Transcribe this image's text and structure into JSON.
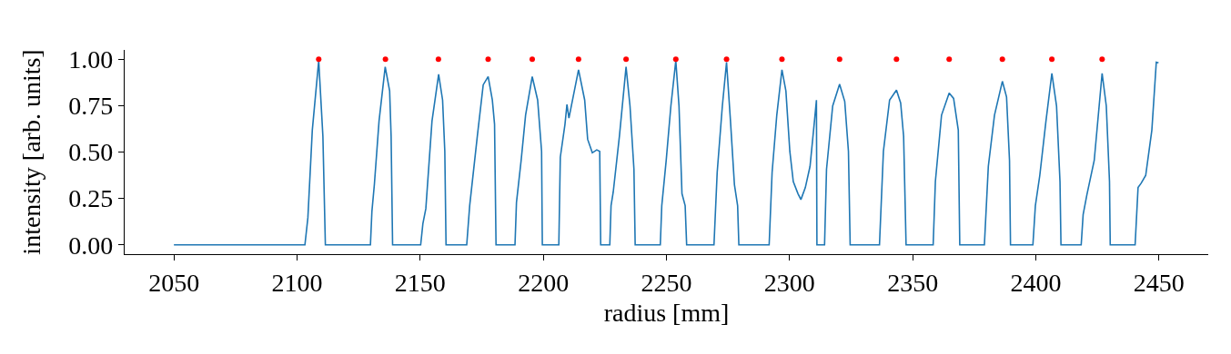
{
  "chart_data": {
    "type": "line",
    "xlabel": "radius [mm]",
    "ylabel": "intensity [arb. units]",
    "xlim": [
      2030,
      2470
    ],
    "ylim": [
      -0.05,
      1.05
    ],
    "xticks": [
      2050,
      2100,
      2150,
      2200,
      2250,
      2300,
      2350,
      2400,
      2450
    ],
    "yticks": [
      {
        "value": 0,
        "label": "0.00"
      },
      {
        "value": 0.25,
        "label": "0.25"
      },
      {
        "value": 0.5,
        "label": "0.50"
      },
      {
        "value": 0.75,
        "label": "0.75"
      },
      {
        "value": 1,
        "label": "1.00"
      }
    ],
    "series": [
      {
        "color": "#1f77b4",
        "marker": "none",
        "line_style": "solid",
        "x": [
          2050,
          2103.2,
          2104.4,
          2106.2,
          2108.8,
          2110.5,
          2111.5,
          2129.8,
          2130.4,
          2131.4,
          2133.3,
          2135.8,
          2137.6,
          2138.2,
          2138.8,
          2150.2,
          2151.1,
          2152.3,
          2154.8,
          2157.5,
          2159.1,
          2160.0,
          2160.5,
          2168.9,
          2170.1,
          2173.2,
          2175.6,
          2177.6,
          2179.3,
          2180.2,
          2180.8,
          2188.5,
          2189.1,
          2191.0,
          2192.8,
          2195.5,
          2197.7,
          2199.3,
          2199.6,
          2206.3,
          2206.9,
          2208.8,
          2209.6,
          2210.4,
          2214.3,
          2216.8,
          2218.0,
          2219.9,
          2221.7,
          2222.9,
          2223.3,
          2227.0,
          2227.5,
          2228.4,
          2230.9,
          2233.6,
          2235.2,
          2236.8,
          2237.3,
          2247.5,
          2248.1,
          2249.9,
          2251.8,
          2253.8,
          2255.1,
          2256.3,
          2257.6,
          2258.2,
          2269.3,
          2270.6,
          2272.7,
          2274.4,
          2276.0,
          2277.6,
          2278.9,
          2279.4,
          2291.7,
          2292.9,
          2294.8,
          2296.9,
          2298.5,
          2300.1,
          2301.5,
          2303.4,
          2304.6,
          2306.4,
          2308.3,
          2310.1,
          2310.9,
          2311.1,
          2312.6,
          2314.2,
          2315.0,
          2317.5,
          2320.3,
          2322.4,
          2323.9,
          2324.6,
          2336.5,
          2338.1,
          2340.6,
          2343.4,
          2345.1,
          2346.3,
          2347.3,
          2358.3,
          2359.2,
          2361.7,
          2364.8,
          2366.6,
          2368.5,
          2369.1,
          2379.1,
          2380.7,
          2383.2,
          2386.4,
          2388.1,
          2389.3,
          2389.7,
          2398.8,
          2399.8,
          2401.6,
          2404.1,
          2406.5,
          2408.4,
          2409.8,
          2410.2,
          2418.4,
          2419.2,
          2420.7,
          2423.7,
          2426.9,
          2428.6,
          2429.9,
          2430.2,
          2440.3,
          2441.5,
          2442.8,
          2444.6,
          2447.1,
          2448.9,
          2449.8
        ],
        "values": [
          0,
          0,
          0.146,
          0.618,
          0.992,
          0.585,
          0,
          0,
          0.179,
          0.325,
          0.667,
          0.959,
          0.829,
          0.585,
          0,
          0,
          0.114,
          0.195,
          0.667,
          0.919,
          0.78,
          0.504,
          0,
          0,
          0.211,
          0.585,
          0.862,
          0.906,
          0.78,
          0.65,
          0,
          0,
          0.228,
          0.455,
          0.699,
          0.906,
          0.78,
          0.504,
          0,
          0,
          0.472,
          0.65,
          0.756,
          0.683,
          0.943,
          0.78,
          0.569,
          0.496,
          0.512,
          0.504,
          0,
          0,
          0.211,
          0.285,
          0.585,
          0.959,
          0.748,
          0.407,
          0,
          0,
          0.211,
          0.455,
          0.748,
          0.992,
          0.748,
          0.276,
          0.211,
          0,
          0,
          0.39,
          0.748,
          0.984,
          0.667,
          0.325,
          0.211,
          0,
          0,
          0.39,
          0.699,
          0.943,
          0.829,
          0.504,
          0.341,
          0.276,
          0.244,
          0.309,
          0.423,
          0.667,
          0.78,
          0,
          0,
          0,
          0.407,
          0.748,
          0.865,
          0.772,
          0.504,
          0,
          0,
          0.504,
          0.78,
          0.834,
          0.764,
          0.585,
          0,
          0,
          0.341,
          0.699,
          0.818,
          0.789,
          0.618,
          0,
          0,
          0.423,
          0.699,
          0.881,
          0.797,
          0.455,
          0,
          0,
          0.211,
          0.374,
          0.667,
          0.924,
          0.748,
          0.341,
          0,
          0,
          0.163,
          0.268,
          0.455,
          0.924,
          0.748,
          0.341,
          0,
          0,
          0.309,
          0.333,
          0.374,
          0.618,
          0.984,
          0.98
        ]
      },
      {
        "type": "scatter",
        "color": "#ff0000",
        "marker": "circle",
        "x": [
          2108.8,
          2135.9,
          2157.4,
          2177.6,
          2195.5,
          2214.3,
          2233.6,
          2253.8,
          2274.4,
          2296.9,
          2320.3,
          2343.4,
          2364.8,
          2386.4,
          2406.5,
          2426.9
        ],
        "values": [
          1,
          1,
          1,
          1,
          1,
          1,
          1,
          1,
          1,
          1,
          1,
          1,
          1,
          1,
          1,
          1
        ]
      }
    ]
  }
}
